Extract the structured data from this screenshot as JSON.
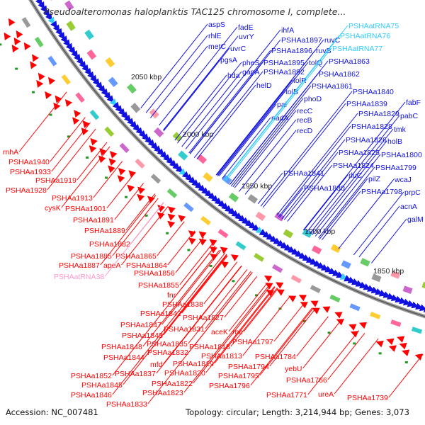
{
  "title": "Pseudoalteromonas haloplanktis TAC125 chromosome I, complete...",
  "footer": {
    "accession": "Accession: NC_007481",
    "summary": "Topology: circular; Length: 3,214,944 bp; Genes: 3,073"
  },
  "colors": {
    "forward": "#1010e0",
    "reverse": "#ff0000",
    "trna_fwd": "#33ccff",
    "trna_rev": "#ff99cc",
    "backbone": "#777777",
    "kbp": "#222222"
  },
  "kbp_labels": [
    "2050 kbp",
    "2000 kbp",
    "1950 kbp",
    "1900 kbp",
    "1850 kbp"
  ],
  "forward_labels": [
    "aspS",
    "rhlE",
    "metC",
    "fadE",
    "uvrY",
    "uvrC",
    "pgsA",
    "ihfA",
    "PSHAa1897",
    "ruvC",
    "PSHAa1896",
    "ruvB",
    "PSHAa1895",
    "tolQ",
    "pheS",
    "gapA",
    "PSHAa1892",
    "hda",
    "helD",
    "tolR",
    "tolB",
    "pal",
    "nadA",
    "phoD",
    "recC",
    "recB",
    "recD",
    "PSHAa1863",
    "PSHAa1862",
    "PSHAa1861",
    "PSHAa1840",
    "PSHAa1839",
    "PSHAa1829",
    "PSHAa1828",
    "PSHAa1826",
    "PSHAa1825",
    "PSHAa1824",
    "PSHAa1841",
    "PSHAa1830",
    "rluC",
    "pilZ",
    "PSHAa1798",
    "fabF",
    "pabC",
    "tmk",
    "holB",
    "PSHAa1800",
    "PSHAa1799",
    "wcaJ",
    "prpC",
    "acnA",
    "galM"
  ],
  "forward_trna_labels": [
    "PSHAatRNA75",
    "PSHAatRNA76",
    "PSHAatRNA77"
  ],
  "reverse_labels": [
    "rnhA",
    "PSHAa1940",
    "PSHAa1933",
    "PSHAa1919",
    "PSHAa1928",
    "PSHAa1913",
    "cysK",
    "PSHAa1901",
    "PSHAa1891",
    "PSHAa1889",
    "PSHAa1882",
    "PSHAa1885",
    "PSHAa1865",
    "PSHAa1887",
    "apeA",
    "PSHAa1864",
    "PSHAa1856",
    "PSHAa1855",
    "fnr",
    "PSHAa1838",
    "PSHAa1842",
    "PSHAa1827",
    "PSHAa1847",
    "PSHAa1831",
    "PSHAa1843",
    "aceK",
    "rne",
    "PSHAa1848",
    "PSHAa1835",
    "PSHAa1818",
    "PSHAa1797",
    "PSHAa1844",
    "PSHAa1832",
    "PSHAa1813",
    "PSHAa1784",
    "mfd",
    "PSHAa1819",
    "PSHAa1794",
    "PSHAa1852",
    "PSHAa1837",
    "PSHAa1820",
    "PSHAa1795",
    "yebU",
    "PSHAa1845",
    "PSHAa1822",
    "PSHAa1796",
    "PSHAa1766",
    "PSHAa1846",
    "PSHAa1823",
    "PSHAa1771",
    "ureA",
    "PSHAa1739",
    "PSHAa1833"
  ],
  "reverse_trna_labels": [
    "PSHAatRNA38"
  ]
}
